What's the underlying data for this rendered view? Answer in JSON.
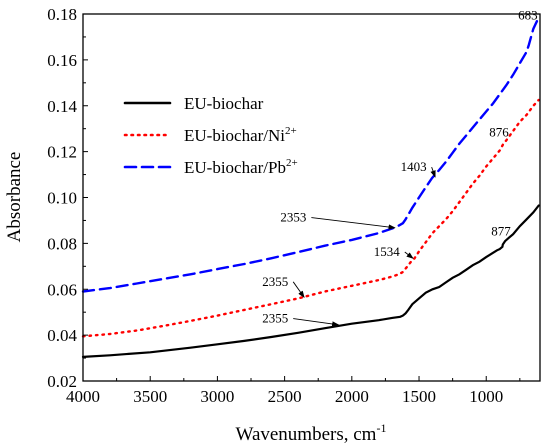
{
  "chart_data": {
    "type": "line",
    "xlabel": "Wavenumbers, cm",
    "xlabel_sup": "-1",
    "ylabel": "Absorbance",
    "xlim": [
      4000,
      600
    ],
    "ylim": [
      0.02,
      0.18
    ],
    "x_reversed": true,
    "xticks": [
      4000,
      3500,
      3000,
      2500,
      2000,
      1500,
      1000
    ],
    "yticks": [
      "0.02",
      "0.04",
      "0.06",
      "0.08",
      "0.10",
      "0.12",
      "0.14",
      "0.16",
      "0.18"
    ],
    "legend_position": "upper-left",
    "series": [
      {
        "name": "EU-biochar",
        "name_sup": "",
        "color": "#000000",
        "style": "solid",
        "x": [
          4000,
          3800,
          3500,
          3200,
          3000,
          2800,
          2600,
          2400,
          2200,
          2000,
          1800,
          1700,
          1640,
          1620,
          1600,
          1580,
          1550,
          1500,
          1450,
          1400,
          1350,
          1300,
          1250,
          1200,
          1150,
          1100,
          1050,
          1000,
          960,
          920,
          900,
          880,
          877,
          860,
          830,
          800,
          750,
          700,
          650,
          610
        ],
        "values": [
          0.0305,
          0.0312,
          0.0325,
          0.0345,
          0.036,
          0.0375,
          0.0392,
          0.041,
          0.043,
          0.045,
          0.0465,
          0.0475,
          0.048,
          0.0485,
          0.0495,
          0.051,
          0.0535,
          0.056,
          0.0585,
          0.06,
          0.061,
          0.063,
          0.065,
          0.0665,
          0.0685,
          0.0705,
          0.072,
          0.074,
          0.0755,
          0.077,
          0.0775,
          0.0785,
          0.0795,
          0.081,
          0.0825,
          0.084,
          0.0875,
          0.0905,
          0.0935,
          0.0965
        ]
      },
      {
        "name": "EU-biochar/Ni",
        "name_sup": "2+",
        "color": "#ff0000",
        "style": "dotted",
        "x": [
          4000,
          3800,
          3600,
          3400,
          3200,
          3000,
          2800,
          2600,
          2400,
          2200,
          2000,
          1800,
          1700,
          1650,
          1620,
          1600,
          1580,
          1560,
          1534,
          1500,
          1450,
          1400,
          1350,
          1300,
          1250,
          1200,
          1150,
          1100,
          1050,
          1000,
          950,
          900,
          876,
          850,
          800,
          750,
          700,
          650,
          610
        ],
        "values": [
          0.0395,
          0.0405,
          0.042,
          0.044,
          0.0462,
          0.0485,
          0.051,
          0.0535,
          0.056,
          0.059,
          0.0615,
          0.064,
          0.0655,
          0.0665,
          0.0675,
          0.069,
          0.0705,
          0.072,
          0.0735,
          0.0765,
          0.0805,
          0.0845,
          0.0875,
          0.0905,
          0.094,
          0.098,
          0.102,
          0.106,
          0.1095,
          0.1135,
          0.117,
          0.1205,
          0.123,
          0.125,
          0.129,
          0.133,
          0.136,
          0.14,
          0.1425
        ]
      },
      {
        "name": "EU-biochar/Pb",
        "name_sup": "2+",
        "color": "#0000ff",
        "style": "dashed",
        "x": [
          4000,
          3800,
          3600,
          3400,
          3200,
          3000,
          2800,
          2600,
          2400,
          2200,
          2000,
          1800,
          1700,
          1650,
          1620,
          1600,
          1580,
          1550,
          1500,
          1450,
          1403,
          1350,
          1300,
          1250,
          1200,
          1150,
          1100,
          1050,
          1000,
          950,
          900,
          850,
          800,
          750,
          700,
          683,
          650,
          610
        ],
        "values": [
          0.059,
          0.0605,
          0.0625,
          0.0645,
          0.0665,
          0.0688,
          0.071,
          0.0735,
          0.0762,
          0.079,
          0.0815,
          0.0845,
          0.0865,
          0.0878,
          0.0888,
          0.0905,
          0.0925,
          0.0955,
          0.1,
          0.1045,
          0.1085,
          0.112,
          0.1155,
          0.1195,
          0.1235,
          0.127,
          0.1305,
          0.134,
          0.1375,
          0.141,
          0.145,
          0.149,
          0.1535,
          0.1585,
          0.1635,
          0.1665,
          0.1735,
          0.1785
        ]
      }
    ],
    "annotations": [
      {
        "label": "683",
        "tip": [
          683,
          0.1665
        ],
        "text": [
          690,
          0.1775
        ],
        "arrow": false
      },
      {
        "label": "1403",
        "tip": [
          1380,
          0.109
        ],
        "text": [
          1540,
          0.1115
        ],
        "arrow": true
      },
      {
        "label": "876",
        "tip": [
          880,
          0.1245
        ],
        "text": [
          905,
          0.1265
        ],
        "arrow": false
      },
      {
        "label": "2353",
        "tip": [
          1680,
          0.0868
        ],
        "text": [
          2435,
          0.0895
        ],
        "arrow": true
      },
      {
        "label": "1534",
        "tip": [
          1545,
          0.0735
        ],
        "text": [
          1740,
          0.0745
        ],
        "arrow": true
      },
      {
        "label": "877",
        "tip": [
          880,
          0.0805
        ],
        "text": [
          890,
          0.0835
        ],
        "arrow": false
      },
      {
        "label": "2355",
        "tip": [
          2355,
          0.0565
        ],
        "text": [
          2570,
          0.0615
        ],
        "arrow": true
      },
      {
        "label": "2355",
        "tip": [
          2100,
          0.0445
        ],
        "text": [
          2570,
          0.0455
        ],
        "arrow": true
      }
    ]
  }
}
